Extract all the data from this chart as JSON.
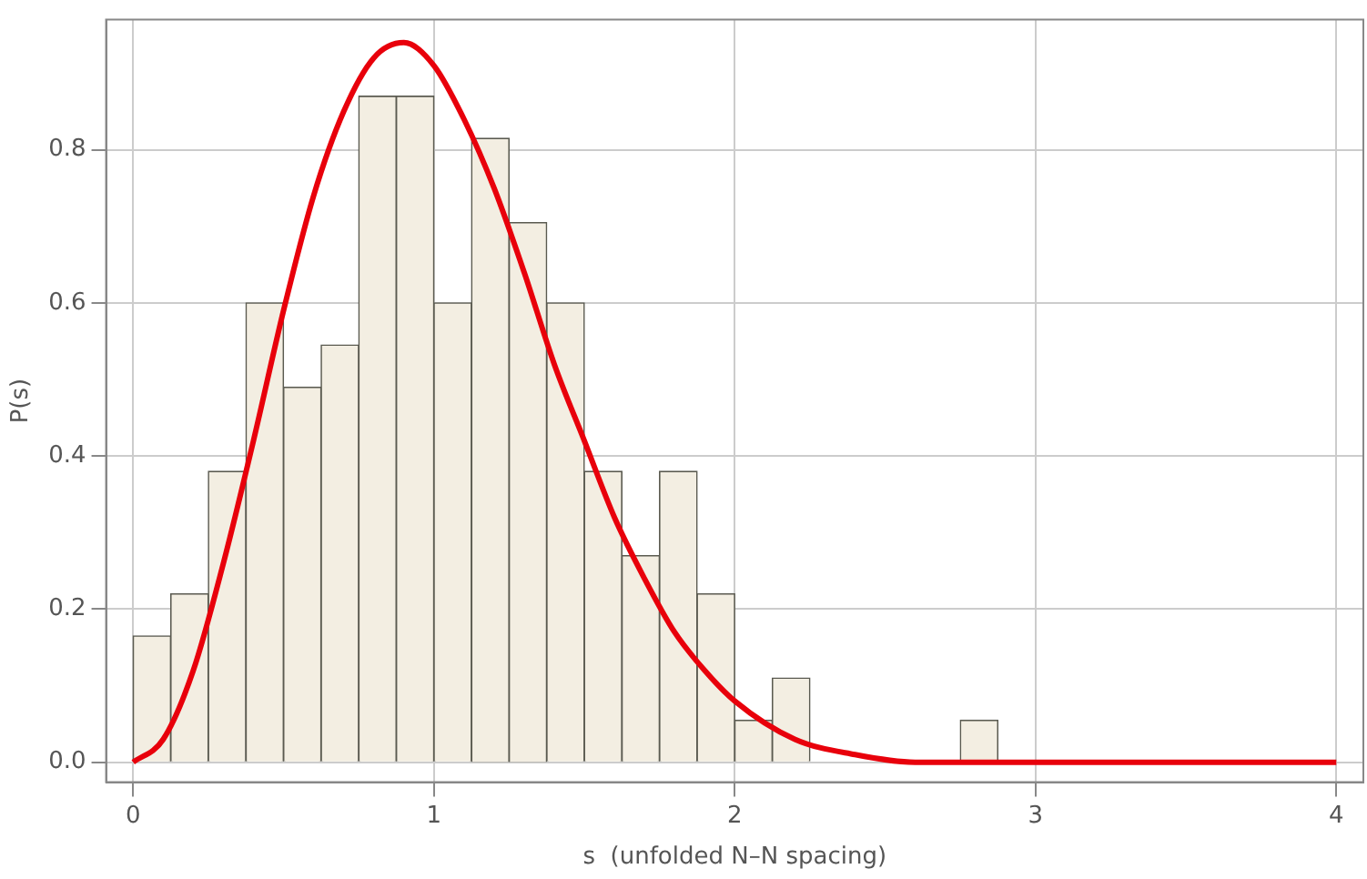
{
  "chart_data": {
    "type": "histogram",
    "xlabel": "s  (unfolded N–N spacing)",
    "ylabel": "P(s)",
    "bins": [
      0,
      0.125,
      0.25,
      0.375,
      0.5,
      0.625,
      0.75,
      0.875,
      1,
      1.125,
      1.25,
      1.375,
      1.5,
      1.625,
      1.75,
      1.875,
      2,
      2.125,
      2.25,
      2.375,
      2.5,
      2.625,
      2.75,
      2.875
    ],
    "values": [
      0.165,
      0.22,
      0.38,
      0.6,
      0.49,
      0.545,
      0.87,
      0.87,
      0.6,
      0.815,
      0.705,
      0.6,
      0.38,
      0.27,
      0.38,
      0.22,
      0.055,
      0.11,
      0,
      0,
      0,
      0,
      0.055
    ],
    "color": "#f3eee2",
    "series": [
      {
        "type": "line",
        "color": "#e8000b",
        "x": [
          0,
          0.1,
          0.2,
          0.3,
          0.4,
          0.5,
          0.6,
          0.7,
          0.8,
          0.9,
          1,
          1.1,
          1.2,
          1.3,
          1.4,
          1.5,
          1.6,
          1.7,
          1.8,
          1.9,
          2,
          2.2,
          2.4,
          2.6,
          2.8,
          3,
          3.5,
          4
        ],
        "values": [
          0,
          0.03,
          0.12,
          0.26,
          0.42,
          0.59,
          0.74,
          0.85,
          0.92,
          0.94,
          0.91,
          0.84,
          0.75,
          0.64,
          0.52,
          0.42,
          0.32,
          0.24,
          0.17,
          0.12,
          0.08,
          0.03,
          0.01,
          0,
          0,
          0,
          0,
          0
        ]
      }
    ],
    "xlim": [
      -0.09,
      4.09
    ],
    "xticks": [
      0,
      1,
      2,
      3,
      4
    ],
    "ylim": [
      -0.026,
      0.97
    ],
    "yticks": [
      {
        "value": 0,
        "label": "0.0"
      },
      {
        "value": 0.2,
        "label": "0.2"
      },
      {
        "value": 0.4,
        "label": "0.4"
      },
      {
        "value": 0.6,
        "label": "0.6"
      },
      {
        "value": 0.8,
        "label": "0.8"
      }
    ],
    "grid": true,
    "marker": "none",
    "line_style": "solid",
    "legend": false
  }
}
